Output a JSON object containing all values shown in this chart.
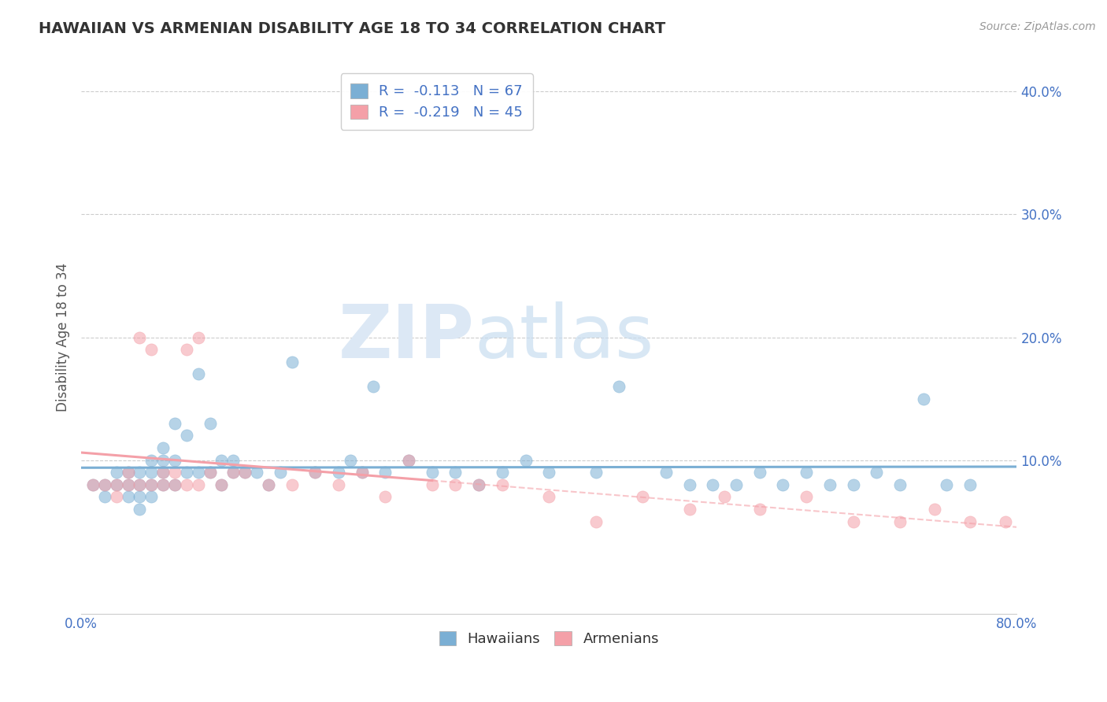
{
  "title": "HAWAIIAN VS ARMENIAN DISABILITY AGE 18 TO 34 CORRELATION CHART",
  "source_text": "Source: ZipAtlas.com",
  "ylabel": "Disability Age 18 to 34",
  "hawaiian_color": "#7bafd4",
  "armenian_color": "#f4a0a8",
  "hawaiian_R": -0.113,
  "hawaiian_N": 67,
  "armenian_R": -0.219,
  "armenian_N": 45,
  "xlim": [
    0.0,
    0.8
  ],
  "ylim": [
    -0.025,
    0.425
  ],
  "background_color": "#ffffff",
  "watermark_zip": "ZIP",
  "watermark_atlas": "atlas",
  "title_color": "#333333",
  "axis_label_color": "#555555",
  "tick_color": "#4472c4",
  "grid_color": "#cccccc",
  "hawaiian_scatter_x": [
    0.01,
    0.02,
    0.02,
    0.03,
    0.03,
    0.04,
    0.04,
    0.04,
    0.05,
    0.05,
    0.05,
    0.05,
    0.06,
    0.06,
    0.06,
    0.06,
    0.07,
    0.07,
    0.07,
    0.07,
    0.08,
    0.08,
    0.08,
    0.09,
    0.09,
    0.1,
    0.1,
    0.11,
    0.11,
    0.12,
    0.12,
    0.13,
    0.13,
    0.14,
    0.15,
    0.16,
    0.17,
    0.18,
    0.2,
    0.22,
    0.23,
    0.24,
    0.25,
    0.26,
    0.28,
    0.3,
    0.32,
    0.34,
    0.36,
    0.38,
    0.4,
    0.44,
    0.46,
    0.5,
    0.52,
    0.54,
    0.56,
    0.58,
    0.6,
    0.62,
    0.64,
    0.66,
    0.68,
    0.7,
    0.72,
    0.74,
    0.76
  ],
  "hawaiian_scatter_y": [
    0.08,
    0.08,
    0.07,
    0.09,
    0.08,
    0.08,
    0.09,
    0.07,
    0.09,
    0.08,
    0.07,
    0.06,
    0.1,
    0.09,
    0.08,
    0.07,
    0.11,
    0.1,
    0.09,
    0.08,
    0.13,
    0.1,
    0.08,
    0.12,
    0.09,
    0.17,
    0.09,
    0.13,
    0.09,
    0.1,
    0.08,
    0.1,
    0.09,
    0.09,
    0.09,
    0.08,
    0.09,
    0.18,
    0.09,
    0.09,
    0.1,
    0.09,
    0.16,
    0.09,
    0.1,
    0.09,
    0.09,
    0.08,
    0.09,
    0.1,
    0.09,
    0.09,
    0.16,
    0.09,
    0.08,
    0.08,
    0.08,
    0.09,
    0.08,
    0.09,
    0.08,
    0.08,
    0.09,
    0.08,
    0.15,
    0.08,
    0.08
  ],
  "armenian_scatter_x": [
    0.01,
    0.02,
    0.03,
    0.03,
    0.04,
    0.04,
    0.05,
    0.05,
    0.06,
    0.06,
    0.07,
    0.07,
    0.08,
    0.08,
    0.09,
    0.09,
    0.1,
    0.1,
    0.11,
    0.12,
    0.13,
    0.14,
    0.16,
    0.18,
    0.2,
    0.22,
    0.24,
    0.26,
    0.28,
    0.3,
    0.32,
    0.34,
    0.36,
    0.4,
    0.44,
    0.48,
    0.52,
    0.55,
    0.58,
    0.62,
    0.66,
    0.7,
    0.73,
    0.76,
    0.79
  ],
  "armenian_scatter_y": [
    0.08,
    0.08,
    0.08,
    0.07,
    0.09,
    0.08,
    0.2,
    0.08,
    0.19,
    0.08,
    0.08,
    0.09,
    0.09,
    0.08,
    0.19,
    0.08,
    0.2,
    0.08,
    0.09,
    0.08,
    0.09,
    0.09,
    0.08,
    0.08,
    0.09,
    0.08,
    0.09,
    0.07,
    0.1,
    0.08,
    0.08,
    0.08,
    0.08,
    0.07,
    0.05,
    0.07,
    0.06,
    0.07,
    0.06,
    0.07,
    0.05,
    0.05,
    0.06,
    0.05,
    0.05
  ]
}
